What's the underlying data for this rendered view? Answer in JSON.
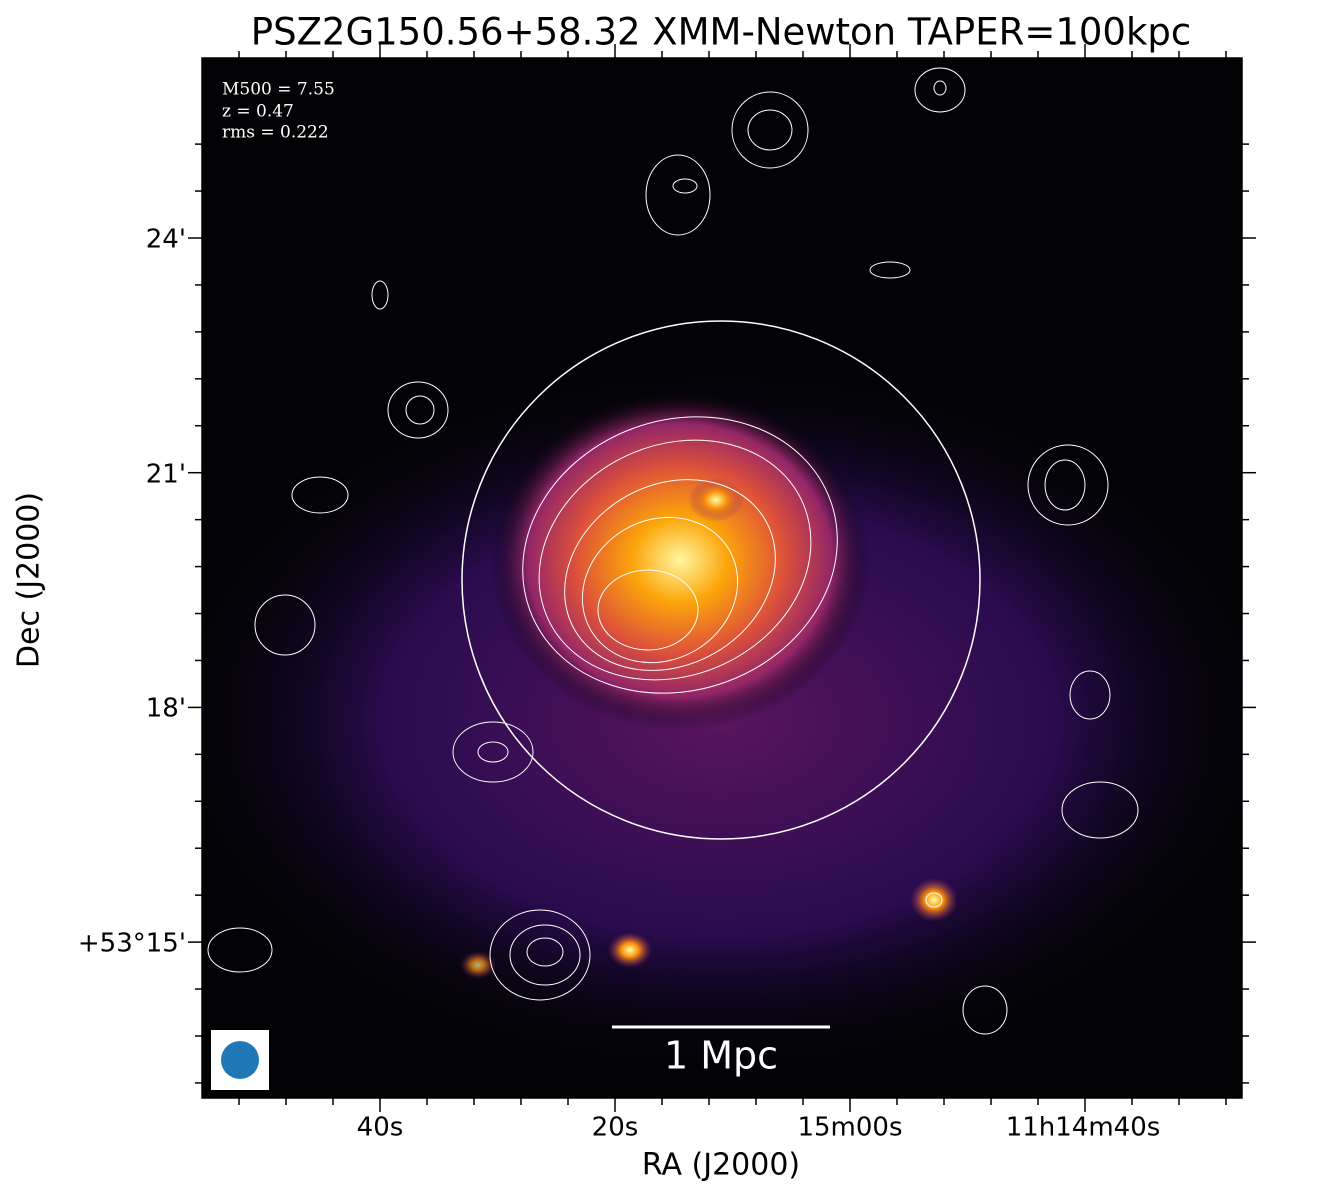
{
  "figure": {
    "title": "PSZ2G150.56+58.32 XMM-Newton TAPER=100kpc",
    "annotations": [
      "M500 = 7.55",
      "z = 0.47",
      "rms = 0.222"
    ],
    "xlabel": "RA (J2000)",
    "ylabel": "Dec (J2000)",
    "xtick_labels": [
      "40s",
      "20s",
      "15m00s",
      "11h14m40s"
    ],
    "ytick_labels": [
      "24'",
      "21'",
      "18'",
      "+53°15'"
    ],
    "scalebar": "1 Mpc"
  }
}
